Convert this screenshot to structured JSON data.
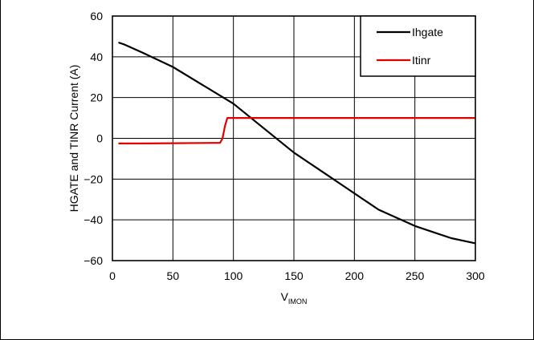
{
  "chart_data": {
    "type": "line",
    "xlabel": "V",
    "xlabel_sub": "IMON",
    "ylabel": "HGATE and TINR Current (A)",
    "xlim": [
      0,
      300
    ],
    "ylim": [
      -60,
      60
    ],
    "xticks": [
      0,
      50,
      100,
      150,
      200,
      250,
      300
    ],
    "yticks": [
      60,
      40,
      20,
      0,
      -20,
      -40,
      -60
    ],
    "ytick_labels": [
      "60",
      "40",
      "20",
      "0",
      "−20",
      "−40",
      "−60"
    ],
    "grid": true,
    "legend_position": "top-right",
    "series": [
      {
        "name": "Ihgate",
        "color": "#000000",
        "x": [
          5,
          10,
          25,
          50,
          75,
          100,
          125,
          150,
          175,
          200,
          220,
          235,
          250,
          265,
          280,
          300
        ],
        "y": [
          47,
          46,
          42,
          35,
          26,
          17,
          5,
          -7,
          -17,
          -27,
          -35,
          -39,
          -43,
          -46,
          -49,
          -51.5
        ]
      },
      {
        "name": "Itinr",
        "color": "#e00000",
        "x": [
          5,
          25,
          50,
          75,
          89,
          91,
          93,
          95,
          100,
          150,
          200,
          250,
          300
        ],
        "y": [
          -2.5,
          -2.5,
          -2.4,
          -2.3,
          -2.2,
          0,
          6,
          10,
          10,
          10,
          10,
          10,
          10
        ]
      }
    ]
  }
}
